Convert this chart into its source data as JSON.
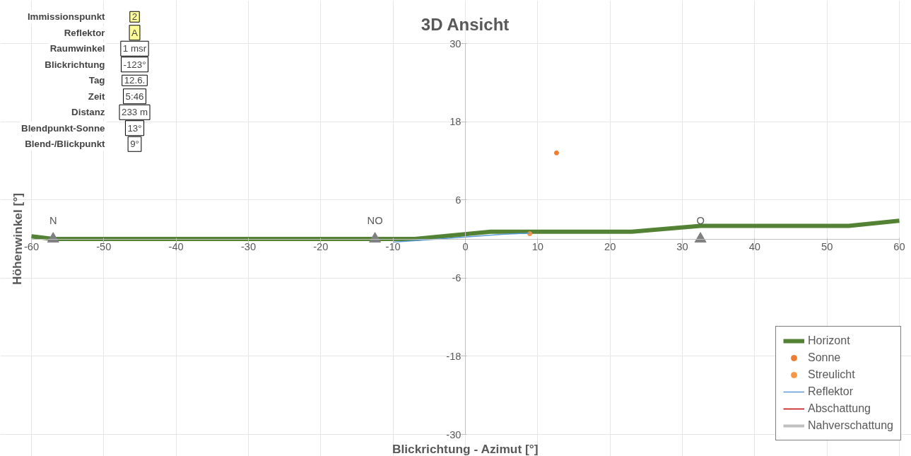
{
  "chart_data": {
    "type": "line",
    "title": "3D Ansicht",
    "xlabel": "Blickrichtung - Azimut [°]",
    "ylabel": "Höhenwinkel [°]",
    "xlim": [
      -60,
      60
    ],
    "xticks": [
      -60,
      -50,
      -40,
      -30,
      -20,
      -10,
      0,
      10,
      20,
      30,
      40,
      50,
      60
    ],
    "ylim": [
      -30,
      30
    ],
    "yticks": [
      -30,
      -18,
      -6,
      6,
      18,
      30
    ],
    "grid": true,
    "legend": "bottom right",
    "series": [
      {
        "name": "Horizont",
        "type": "line",
        "color": "#548235",
        "x": [
          -60,
          -57,
          -7,
          3.5,
          23,
          32.5,
          53,
          60
        ],
        "values": [
          0.4,
          0,
          0,
          1.1,
          1.1,
          2,
          2,
          2.8
        ]
      },
      {
        "name": "Sonne",
        "type": "scatter",
        "marker": "circle",
        "color": "#ed7d31",
        "x": [
          12.6
        ],
        "values": [
          13.2
        ]
      },
      {
        "name": "Streulicht",
        "type": "scatter",
        "marker": "circle",
        "color": "#f79646",
        "x": [
          8.9
        ],
        "values": [
          0.8
        ]
      },
      {
        "name": "Reflektor",
        "type": "line",
        "color": "#5b9bd5",
        "x": [
          -10,
          -5,
          0,
          5,
          8.9
        ],
        "values": [
          -0.5,
          -0.1,
          0.3,
          0.7,
          0.9
        ]
      },
      {
        "name": "Abschattung",
        "type": "line",
        "color": "#c00000"
      },
      {
        "name": "Nahverschattung",
        "type": "line",
        "color": "#bfbfbf"
      },
      {
        "type": "scatter",
        "marker": "triangle",
        "color": "#808080",
        "x": [
          -57,
          -12.5,
          32.5
        ],
        "values": [
          0,
          0,
          0
        ]
      }
    ],
    "annotations": [
      {
        "text": "N",
        "x": -57,
        "y": 0
      },
      {
        "text": "NO",
        "x": -12.5,
        "y": 0
      },
      {
        "text": "O",
        "x": 32.5,
        "y": 0
      },
      "Immissionspunkt",
      "2",
      "Reflektor",
      "A",
      "Raumwinkel",
      "1 msr",
      "Blickrichtung",
      "-123°",
      "Tag",
      "12.6.",
      "Zeit",
      "5:46",
      "Distanz",
      "233 m",
      "Blendpunkt-Sonne",
      "13°",
      "Blend-/Blickpunkt",
      "9°"
    ]
  }
}
